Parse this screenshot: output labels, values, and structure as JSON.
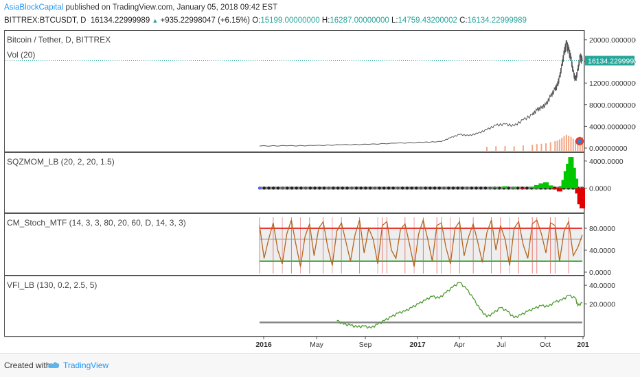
{
  "header": {
    "author": "AsiaBlockCapital",
    "published": "published on TradingView.com, January 05, 2018 09:42 EST",
    "symbol": "BITTREX:BTCUSDT, D",
    "price": "16134.22999989",
    "arrow": "▲",
    "change": "+935.22998047 (+6.15%)",
    "o_label": "O:",
    "o_val": "15199.00000000",
    "h_label": "H:",
    "h_val": "16287.00000000",
    "l_label": "L:",
    "l_val": "14759.43200002",
    "c_label": "C:",
    "c_val": "16134.22999989"
  },
  "footer": {
    "created_with": "Created with",
    "brand": "TradingView",
    "logo_icon": "tradingview-logo-icon"
  },
  "colors": {
    "price_line": "#555555",
    "dotted": "#26a69a",
    "pos_bar": "#00c800",
    "neg_bar": "#e00000",
    "stoch": "#b5651d",
    "stoch_upper": "#e53935",
    "stoch_lower": "#4caf50",
    "vfi": "#4d9a2f",
    "vol_bar": "#f4a582",
    "price_tag": "#26a69a"
  },
  "chart_data": [
    {
      "id": "price",
      "type": "line",
      "title": "Bitcoin / Tether, D, BITTREX",
      "indicator_label": "Vol (20)",
      "yticks": [
        "20000.00000000",
        "16000.00000000",
        "12000.00000000",
        "8000.00000000",
        "4000.00000000",
        "0.00000000"
      ],
      "ytick_values": [
        20000,
        16000,
        12000,
        8000,
        4000,
        0
      ],
      "ylim": [
        0,
        21000
      ],
      "last_price_label": "16134.22999989",
      "last_price": 16134,
      "x": [
        0,
        60,
        120,
        180,
        240,
        300,
        360,
        400,
        420,
        440,
        460,
        480,
        500,
        520,
        540,
        560,
        580,
        600,
        610,
        620,
        630,
        640,
        650,
        655,
        660,
        665,
        670,
        675,
        680,
        685,
        690,
        695,
        700,
        705,
        710
      ],
      "values": [
        380,
        420,
        450,
        600,
        680,
        900,
        1050,
        1200,
        1900,
        2500,
        2300,
        2700,
        3400,
        4200,
        4400,
        4100,
        5200,
        6100,
        7000,
        7400,
        8000,
        9500,
        10800,
        11500,
        13000,
        15200,
        17500,
        19200,
        18000,
        16500,
        14000,
        12500,
        14200,
        16800,
        16134
      ]
    },
    {
      "id": "sqzmom",
      "type": "bar",
      "title": "SQZMOM_LB (20, 2, 20, 1.5)",
      "yticks": [
        "4000.0000",
        "0.0000"
      ],
      "ytick_values": [
        4000,
        0
      ],
      "ylim": [
        -3200,
        4700
      ],
      "x": [
        520,
        540,
        560,
        580,
        600,
        610,
        620,
        630,
        640,
        650,
        660,
        665,
        670,
        675,
        680,
        685,
        690,
        695,
        700,
        705,
        710
      ],
      "values": [
        120,
        260,
        180,
        -120,
        200,
        450,
        700,
        850,
        400,
        -200,
        -500,
        300,
        1200,
        2500,
        3600,
        4600,
        3000,
        1400,
        -800,
        -2400,
        -3000
      ]
    },
    {
      "id": "stoch",
      "type": "line",
      "title": "CM_Stoch_MTF (14, 3, 3, 80, 20, 60, D, 14, 3, 3)",
      "yticks": [
        "80.0000",
        "40.0000",
        "0.0000"
      ],
      "ytick_values": [
        80,
        40,
        0
      ],
      "ylim": [
        0,
        100
      ],
      "levels": [
        80,
        60,
        20
      ],
      "x": [
        0,
        10,
        20,
        30,
        40,
        50,
        60,
        70,
        80,
        90,
        100,
        110,
        120,
        130,
        140,
        150,
        160,
        170,
        180,
        190,
        200,
        210,
        220,
        230,
        240,
        250,
        260,
        270,
        280,
        290,
        300,
        310,
        320,
        330,
        340,
        350,
        360,
        370,
        380,
        390,
        400,
        410,
        420,
        430,
        440,
        450,
        460,
        470,
        480,
        490,
        500,
        510,
        520,
        530,
        540,
        550,
        560,
        570,
        580,
        590,
        600,
        610,
        620,
        630,
        640,
        650,
        660,
        670,
        680,
        690,
        700,
        710
      ],
      "values": [
        85,
        25,
        60,
        90,
        40,
        15,
        70,
        95,
        50,
        10,
        65,
        88,
        30,
        80,
        92,
        45,
        12,
        75,
        90,
        55,
        20,
        68,
        95,
        35,
        80,
        60,
        15,
        85,
        92,
        40,
        25,
        78,
        88,
        50,
        10,
        70,
        95,
        60,
        20,
        85,
        90,
        45,
        15,
        80,
        92,
        30,
        65,
        88,
        55,
        18,
        72,
        95,
        40,
        85,
        60,
        12,
        80,
        92,
        50,
        25,
        88,
        95,
        70,
        35,
        90,
        85,
        20,
        75,
        92,
        30,
        45,
        68
      ]
    },
    {
      "id": "vfi",
      "type": "line",
      "title": "VFI_LB (130, 0.2, 2.5, 5)",
      "yticks": [
        "40.0000",
        "20.0000"
      ],
      "ytick_values": [
        40,
        20
      ],
      "ylim": [
        -10,
        46
      ],
      "baseline": 0,
      "x": [
        170,
        185,
        200,
        215,
        230,
        245,
        260,
        275,
        290,
        305,
        320,
        335,
        350,
        365,
        380,
        395,
        410,
        425,
        440,
        455,
        470,
        485,
        500,
        515,
        530,
        545,
        560,
        575,
        590,
        605,
        620,
        635,
        650,
        665,
        680,
        695,
        700,
        710
      ],
      "values": [
        2,
        -2,
        -3,
        -5,
        -4,
        -6,
        -2,
        2,
        6,
        10,
        12,
        16,
        20,
        24,
        28,
        26,
        32,
        38,
        43,
        36,
        26,
        14,
        6,
        10,
        16,
        12,
        5,
        8,
        12,
        15,
        18,
        17,
        22,
        24,
        29,
        26,
        18,
        21
      ]
    }
  ],
  "xaxis": {
    "labels": [
      "2016",
      "May",
      "Sep",
      "2017",
      "Apr",
      "Jul",
      "Oct",
      "201"
    ],
    "bold": [
      true,
      false,
      false,
      true,
      false,
      false,
      false,
      true
    ]
  }
}
